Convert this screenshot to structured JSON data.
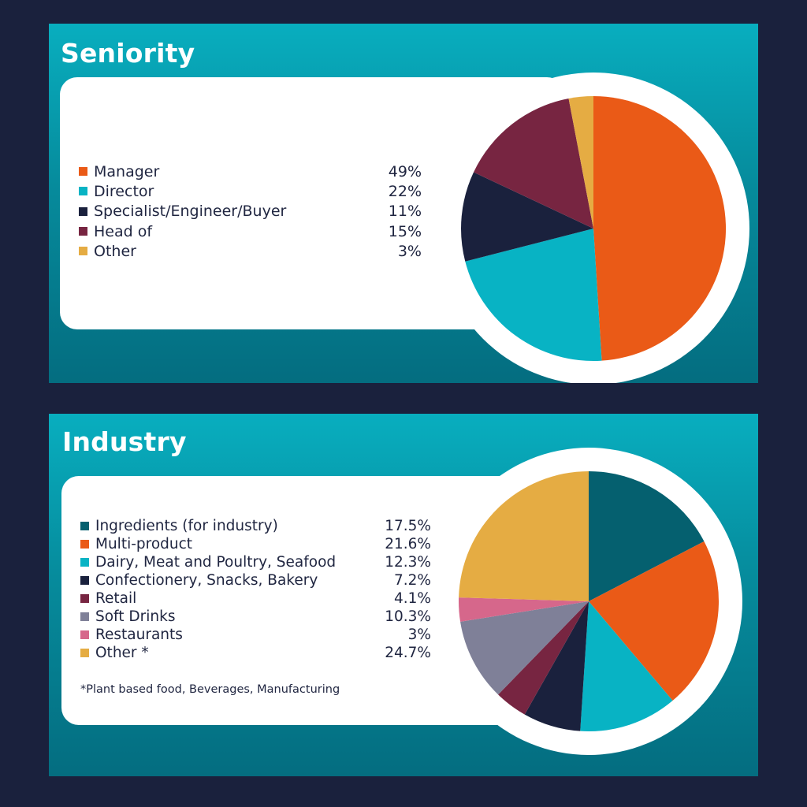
{
  "chart_data": [
    {
      "type": "pie",
      "title": "Seniority",
      "slices": [
        {
          "label": "Manager",
          "value": 49,
          "display": "49%",
          "color": "#ea5a17"
        },
        {
          "label": "Director",
          "value": 22,
          "display": "22%",
          "color": "#08b3c4"
        },
        {
          "label": "Specialist/Engineer/Buyer",
          "value": 11,
          "display": "11%",
          "color": "#1a213d"
        },
        {
          "label": "Head of",
          "value": 15,
          "display": "15%",
          "color": "#772541"
        },
        {
          "label": "Other",
          "value": 3,
          "display": "3%",
          "color": "#e5ac43"
        }
      ]
    },
    {
      "type": "pie",
      "title": "Industry",
      "footnote": "*Plant based food, Beverages, Manufacturing",
      "slices": [
        {
          "label": "Ingredients (for industry)",
          "value": 17.5,
          "display": "17.5%",
          "color": "#05606f"
        },
        {
          "label": "Multi-product",
          "value": 21.6,
          "display": "21.6%",
          "color": "#ea5a17"
        },
        {
          "label": "Dairy, Meat and Poultry, Seafood",
          "value": 12.3,
          "display": "12.3%",
          "color": "#08b3c4"
        },
        {
          "label": "Confectionery, Snacks, Bakery",
          "value": 7.2,
          "display": "7.2%",
          "color": "#1a213d"
        },
        {
          "label": "Retail",
          "value": 4.1,
          "display": "4.1%",
          "color": "#772541"
        },
        {
          "label": "Soft Drinks",
          "value": 10.3,
          "display": "10.3%",
          "color": "#7f8098"
        },
        {
          "label": "Restaurants",
          "value": 3,
          "display": "3%",
          "color": "#d6678b"
        },
        {
          "label": "Other *",
          "value": 24.7,
          "display": "24.7%",
          "color": "#e5ac43"
        }
      ]
    }
  ]
}
